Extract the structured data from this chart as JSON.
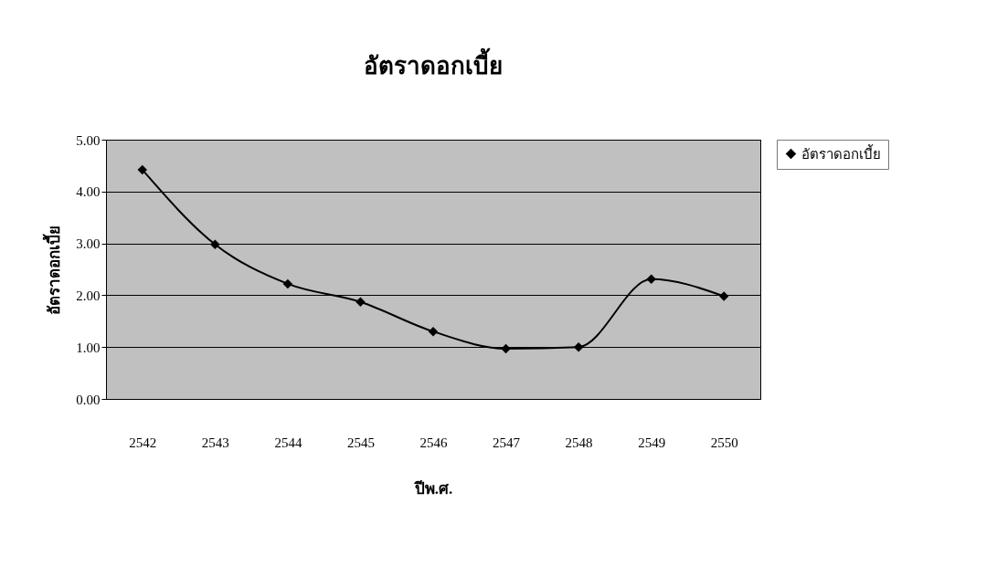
{
  "chart_data": {
    "type": "line",
    "title": "อัตราดอกเบี้ย",
    "xlabel": "ปีพ.ศ.",
    "ylabel": "อัตราดอกเบี้ย",
    "categories": [
      "2542",
      "2543",
      "2544",
      "2545",
      "2546",
      "2547",
      "2548",
      "2549",
      "2550"
    ],
    "series": [
      {
        "name": "อัตราดอกเบี้ย",
        "color": "#000000",
        "values": [
          4.42,
          2.98,
          2.22,
          1.87,
          1.3,
          0.97,
          1.0,
          2.31,
          1.98
        ]
      }
    ],
    "ylim": [
      0,
      5
    ],
    "yticks": [
      {
        "value": 0,
        "label": "0.00"
      },
      {
        "value": 1,
        "label": "1.00"
      },
      {
        "value": 2,
        "label": "2.00"
      },
      {
        "value": 3,
        "label": "3.00"
      },
      {
        "value": 4,
        "label": "4.00"
      },
      {
        "value": 5,
        "label": "5.00"
      }
    ],
    "grid": "y",
    "legend": "right",
    "marker": "diamond",
    "line_style": "solid"
  }
}
